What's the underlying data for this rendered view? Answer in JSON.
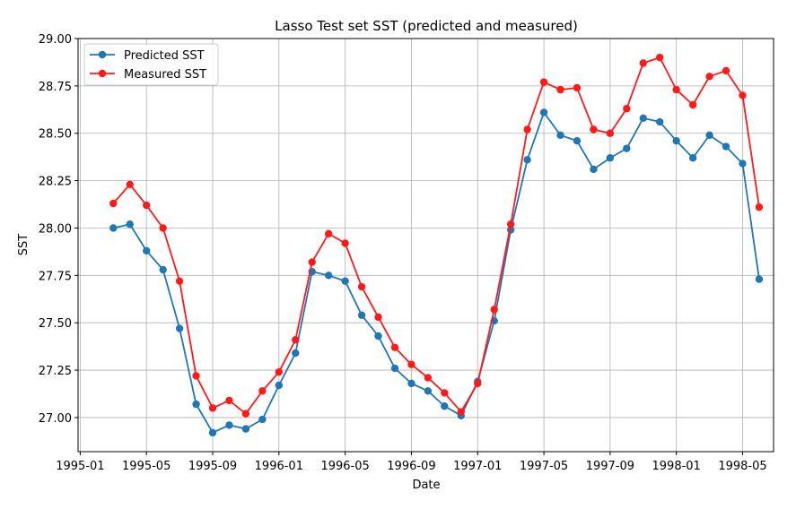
{
  "chart_data": {
    "type": "line",
    "title": "Lasso Test set SST (predicted and measured)",
    "xlabel": "Date",
    "ylabel": "SST",
    "x_ticks": [
      "1995-01",
      "1995-05",
      "1995-09",
      "1996-01",
      "1996-05",
      "1996-09",
      "1997-01",
      "1997-05",
      "1997-09",
      "1998-01",
      "1998-05"
    ],
    "y_ticks": [
      "27.00",
      "27.25",
      "27.50",
      "27.75",
      "28.00",
      "28.25",
      "28.50",
      "28.75",
      "29.00"
    ],
    "ylim": [
      26.82,
      29.0
    ],
    "xlim": [
      "1995-01",
      "1998-07"
    ],
    "grid": true,
    "legend_position": "upper-left",
    "x": [
      "1995-03",
      "1995-04",
      "1995-05",
      "1995-06",
      "1995-07",
      "1995-08",
      "1995-09",
      "1995-10",
      "1995-11",
      "1995-12",
      "1996-01",
      "1996-02",
      "1996-03",
      "1996-04",
      "1996-05",
      "1996-06",
      "1996-07",
      "1996-08",
      "1996-09",
      "1996-10",
      "1996-11",
      "1996-12",
      "1997-01",
      "1997-02",
      "1997-03",
      "1997-04",
      "1997-05",
      "1997-06",
      "1997-07",
      "1997-08",
      "1997-09",
      "1997-10",
      "1997-11",
      "1997-12",
      "1998-01",
      "1998-02",
      "1998-03",
      "1998-04",
      "1998-05",
      "1998-06"
    ],
    "series": [
      {
        "name": "Predicted SST",
        "color": "#1f77b4",
        "values": [
          28.0,
          28.02,
          27.88,
          27.78,
          27.47,
          27.07,
          26.92,
          26.96,
          26.94,
          26.99,
          27.17,
          27.34,
          27.77,
          27.75,
          27.72,
          27.54,
          27.43,
          27.26,
          27.18,
          27.14,
          27.06,
          27.01,
          27.19,
          27.51,
          27.99,
          28.36,
          28.61,
          28.49,
          28.46,
          28.31,
          28.37,
          28.42,
          28.58,
          28.56,
          28.46,
          28.37,
          28.49,
          28.43,
          28.34,
          27.73
        ]
      },
      {
        "name": "Measured SST",
        "color": "#ff1a1a",
        "values": [
          28.13,
          28.23,
          28.12,
          28.0,
          27.72,
          27.22,
          27.05,
          27.09,
          27.02,
          27.14,
          27.24,
          27.41,
          27.82,
          27.97,
          27.92,
          27.69,
          27.53,
          27.37,
          27.28,
          27.21,
          27.13,
          27.03,
          27.18,
          27.57,
          28.02,
          28.52,
          28.77,
          28.73,
          28.74,
          28.52,
          28.5,
          28.63,
          28.87,
          28.9,
          28.73,
          28.65,
          28.8,
          28.83,
          28.7,
          28.11
        ]
      }
    ]
  }
}
